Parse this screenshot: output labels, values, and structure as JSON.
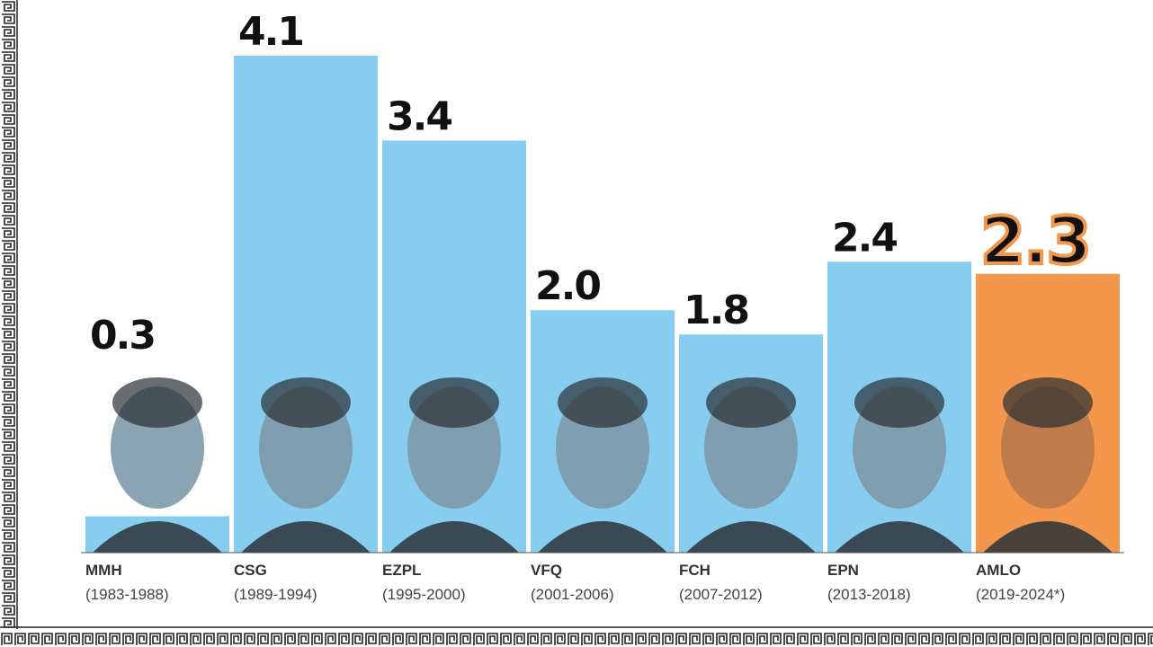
{
  "chart_data": {
    "type": "bar",
    "categories": [
      "MMH",
      "CSG",
      "EZPL",
      "VFQ",
      "FCH",
      "EPN",
      "AMLO"
    ],
    "periods": [
      "(1983-1988)",
      "(1989-1994)",
      "(1995-2000)",
      "(2001-2006)",
      "(2007-2012)",
      "(2013-2018)",
      "(2019-2024*)"
    ],
    "values": [
      0.3,
      4.1,
      3.4,
      2.0,
      1.8,
      2.4,
      2.3
    ],
    "value_labels": [
      "0.3",
      "4.1",
      "3.4",
      "2.0",
      "1.8",
      "2.4",
      "2.3"
    ],
    "colors": [
      "#86cdf0",
      "#86cdf0",
      "#86cdf0",
      "#86cdf0",
      "#86cdf0",
      "#86cdf0",
      "#f2974c"
    ],
    "ylim": [
      0,
      4.1
    ]
  }
}
